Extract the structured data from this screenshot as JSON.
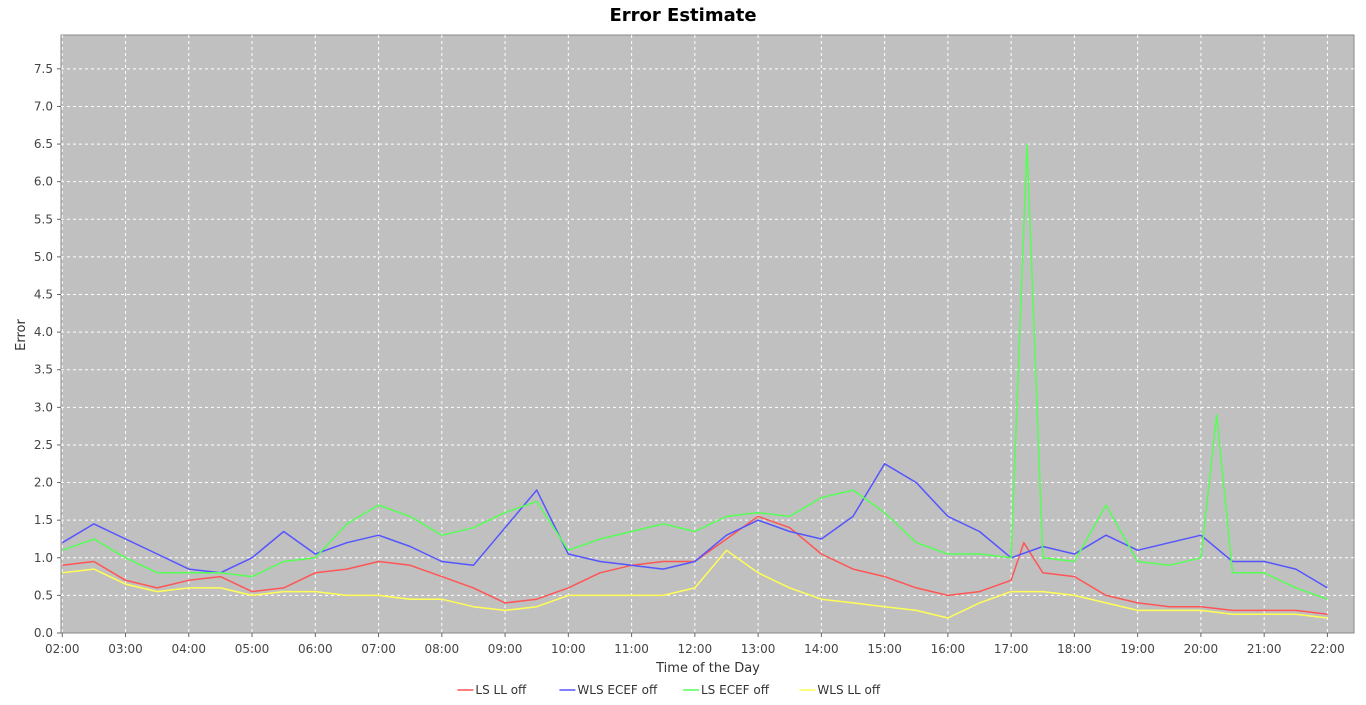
{
  "chart_data": {
    "type": "line",
    "title": "Error Estimate",
    "xlabel": "Time of the Day",
    "ylabel": "Error",
    "xlim": [
      1.98,
      22.42
    ],
    "ylim": [
      0,
      7.95
    ],
    "x_ticks": [
      "02:00",
      "03:00",
      "04:00",
      "05:00",
      "06:00",
      "07:00",
      "08:00",
      "09:00",
      "10:00",
      "11:00",
      "12:00",
      "13:00",
      "14:00",
      "15:00",
      "16:00",
      "17:00",
      "18:00",
      "19:00",
      "20:00",
      "21:00",
      "22:00"
    ],
    "x_tick_values": [
      2,
      3,
      4,
      5,
      6,
      7,
      8,
      9,
      10,
      11,
      12,
      13,
      14,
      15,
      16,
      17,
      18,
      19,
      20,
      21,
      22
    ],
    "y_ticks": [
      "0.0",
      "0.5",
      "1.0",
      "1.5",
      "2.0",
      "2.5",
      "3.0",
      "3.5",
      "4.0",
      "4.5",
      "5.0",
      "5.5",
      "6.0",
      "6.5",
      "7.0",
      "7.5"
    ],
    "y_tick_values": [
      0,
      0.5,
      1,
      1.5,
      2,
      2.5,
      3,
      3.5,
      4,
      4.5,
      5,
      5.5,
      6,
      6.5,
      7,
      7.5
    ],
    "grid": true,
    "legend_position": "bottom",
    "plot_background": "#c0c0c0",
    "series": [
      {
        "name": "LS  LL off",
        "color": "#ff5555",
        "x": [
          2,
          2.5,
          3,
          3.5,
          4,
          4.5,
          5,
          5.5,
          6,
          6.5,
          7,
          7.5,
          8,
          8.5,
          9,
          9.5,
          10,
          10.5,
          11,
          11.5,
          12,
          12.5,
          13,
          13.5,
          14,
          14.5,
          15,
          15.5,
          16,
          16.5,
          17,
          17.2,
          17.5,
          18,
          18.5,
          19,
          19.5,
          20,
          20.5,
          21,
          21.5,
          22
        ],
        "y": [
          0.9,
          0.95,
          0.7,
          0.6,
          0.7,
          0.75,
          0.55,
          0.6,
          0.8,
          0.85,
          0.95,
          0.9,
          0.75,
          0.6,
          0.4,
          0.45,
          0.6,
          0.8,
          0.9,
          0.95,
          0.95,
          1.25,
          1.55,
          1.4,
          1.05,
          0.85,
          0.75,
          0.6,
          0.5,
          0.55,
          0.7,
          1.2,
          0.8,
          0.75,
          0.5,
          0.4,
          0.35,
          0.35,
          0.3,
          0.3,
          0.3,
          0.25
        ]
      },
      {
        "name": "WLS  ECEF off",
        "color": "#5555ff",
        "x": [
          2,
          2.5,
          3,
          3.5,
          4,
          4.5,
          5,
          5.5,
          6,
          6.5,
          7,
          7.5,
          8,
          8.5,
          9,
          9.5,
          10,
          10.5,
          11,
          11.5,
          12,
          12.5,
          13,
          13.5,
          14,
          14.5,
          15,
          15.5,
          16,
          16.5,
          17,
          17.5,
          18,
          18.5,
          19,
          19.5,
          20,
          20.5,
          21,
          21.5,
          22
        ],
        "y": [
          1.2,
          1.45,
          1.25,
          1.05,
          0.85,
          0.8,
          1.0,
          1.35,
          1.05,
          1.2,
          1.3,
          1.15,
          0.95,
          0.9,
          1.4,
          1.9,
          1.05,
          0.95,
          0.9,
          0.85,
          0.95,
          1.3,
          1.5,
          1.35,
          1.25,
          1.55,
          2.25,
          2.0,
          1.55,
          1.35,
          1.0,
          1.15,
          1.05,
          1.3,
          1.1,
          1.2,
          1.3,
          0.95,
          0.95,
          0.85,
          0.6
        ]
      },
      {
        "name": "LS  ECEF off",
        "color": "#55ff55",
        "x": [
          2,
          2.5,
          3,
          3.5,
          4,
          4.5,
          5,
          5.5,
          6,
          6.5,
          7,
          7.5,
          8,
          8.5,
          9,
          9.5,
          10,
          10.5,
          11,
          11.5,
          12,
          12.5,
          13,
          13.5,
          14,
          14.5,
          15,
          15.5,
          16,
          16.5,
          17,
          17.25,
          17.5,
          18,
          18.5,
          19,
          19.5,
          20,
          20.25,
          20.5,
          21,
          21.5,
          22
        ],
        "y": [
          1.1,
          1.25,
          1.0,
          0.8,
          0.8,
          0.8,
          0.75,
          0.95,
          1.0,
          1.45,
          1.7,
          1.55,
          1.3,
          1.4,
          1.6,
          1.75,
          1.1,
          1.25,
          1.35,
          1.45,
          1.35,
          1.55,
          1.6,
          1.55,
          1.8,
          1.9,
          1.6,
          1.2,
          1.05,
          1.05,
          1.0,
          6.5,
          1.0,
          0.95,
          1.7,
          0.95,
          0.9,
          1.0,
          2.9,
          0.8,
          0.8,
          0.6,
          0.45
        ]
      },
      {
        "name": "WLS  LL off",
        "color": "#ffff55",
        "x": [
          2,
          2.5,
          3,
          3.5,
          4,
          4.5,
          5,
          5.5,
          6,
          6.5,
          7,
          7.5,
          8,
          8.5,
          9,
          9.5,
          10,
          10.5,
          11,
          11.5,
          12,
          12.5,
          13,
          13.5,
          14,
          14.5,
          15,
          15.5,
          16,
          16.5,
          17,
          17.5,
          18,
          18.5,
          19,
          19.5,
          20,
          20.5,
          21,
          21.5,
          22
        ],
        "y": [
          0.8,
          0.85,
          0.65,
          0.55,
          0.6,
          0.6,
          0.5,
          0.55,
          0.55,
          0.5,
          0.5,
          0.45,
          0.45,
          0.35,
          0.3,
          0.35,
          0.5,
          0.5,
          0.5,
          0.5,
          0.6,
          1.1,
          0.8,
          0.6,
          0.45,
          0.4,
          0.35,
          0.3,
          0.2,
          0.4,
          0.55,
          0.55,
          0.5,
          0.4,
          0.3,
          0.3,
          0.3,
          0.25,
          0.25,
          0.25,
          0.2
        ]
      }
    ]
  }
}
